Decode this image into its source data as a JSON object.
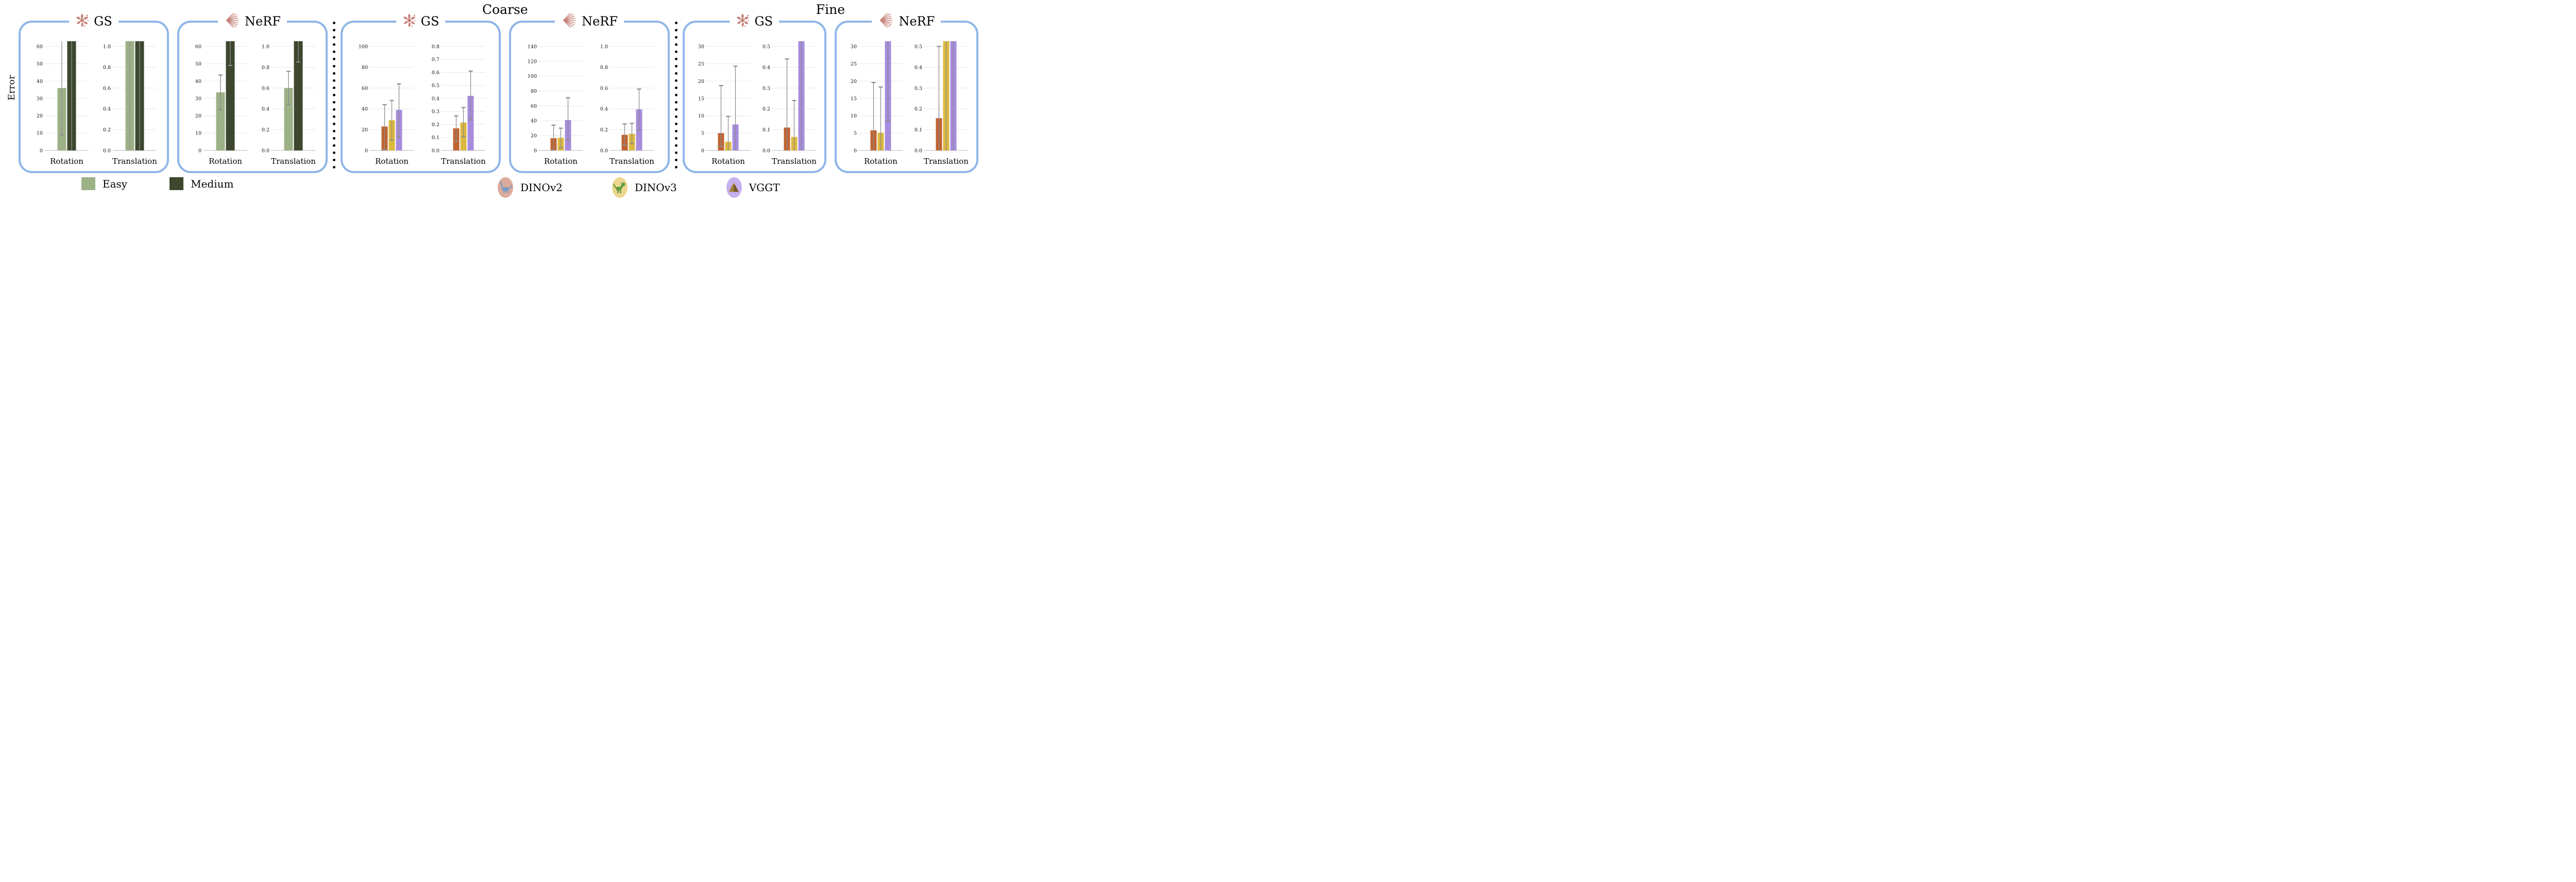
{
  "figure": {
    "y_axis_label": "Error"
  },
  "colors": {
    "easy": "#9db187",
    "medium": "#3d472e",
    "dinov2": "#bf6332",
    "dinov3": "#dcb83f",
    "vggt": "#a78cdd",
    "box_border": "#8fb6e8",
    "error_bar": "#8c8c8c",
    "grid": "#e7e7e7",
    "axis": "#c4c4c4",
    "icon_salmon": "#c7837b"
  },
  "legend": {
    "difficulty": [
      {
        "key": "easy",
        "label": "Easy"
      },
      {
        "key": "medium",
        "label": "Medium"
      }
    ],
    "backbones": [
      {
        "key": "dinov2",
        "label": "DINOv2",
        "icon": "sauropod-icon",
        "bg": "#dcab9c"
      },
      {
        "key": "dinov3",
        "label": "DINOv3",
        "icon": "trex-icon",
        "bg": "#ecd78e"
      },
      {
        "key": "vggt",
        "label": "VGGT",
        "icon": "pyramid-icon",
        "bg": "#c5b0f0"
      }
    ]
  },
  "sections": [
    {
      "id": "overall",
      "title": "",
      "boxes": [
        {
          "id": "overall-gs",
          "label": "GS",
          "icon": "splat-icon",
          "chart_ids": [
            "overall-gs-rotation",
            "overall-gs-translation"
          ]
        },
        {
          "id": "overall-nerf",
          "label": "NeRF",
          "icon": "nerf-rays-icon",
          "chart_ids": [
            "overall-nerf-rotation",
            "overall-nerf-translation"
          ]
        }
      ]
    },
    {
      "id": "coarse",
      "title": "Coarse",
      "boxes": [
        {
          "id": "coarse-gs",
          "label": "GS",
          "icon": "splat-icon",
          "chart_ids": [
            "coarse-gs-rotation",
            "coarse-gs-translation"
          ]
        },
        {
          "id": "coarse-nerf",
          "label": "NeRF",
          "icon": "nerf-rays-icon",
          "chart_ids": [
            "coarse-nerf-rotation",
            "coarse-nerf-translation"
          ]
        }
      ]
    },
    {
      "id": "fine",
      "title": "Fine",
      "boxes": [
        {
          "id": "fine-gs",
          "label": "GS",
          "icon": "splat-icon",
          "chart_ids": [
            "fine-gs-rotation",
            "fine-gs-translation"
          ]
        },
        {
          "id": "fine-nerf",
          "label": "NeRF",
          "icon": "nerf-rays-icon",
          "chart_ids": [
            "fine-nerf-rotation",
            "fine-nerf-translation"
          ]
        }
      ]
    }
  ],
  "chart_data": [
    {
      "id": "overall-gs-rotation",
      "type": "bar",
      "section": "overall",
      "box": "GS",
      "xlabel": "Rotation",
      "ylim": [
        0,
        63
      ],
      "yticks": [
        {
          "v": 0,
          "label": "0"
        },
        {
          "v": 10,
          "label": "10"
        },
        {
          "v": 20,
          "label": "20"
        },
        {
          "v": 30,
          "label": "30"
        },
        {
          "v": 40,
          "label": "40"
        },
        {
          "v": 50,
          "label": "50"
        },
        {
          "v": 60,
          "label": "60"
        }
      ],
      "bars": [
        {
          "series": "easy",
          "value": 36,
          "err": [
            9,
            75
          ],
          "clipped": false
        },
        {
          "series": "medium",
          "value": 70,
          "err": [
            -5,
            90
          ],
          "clipped": true
        }
      ]
    },
    {
      "id": "overall-gs-translation",
      "type": "bar",
      "section": "overall",
      "box": "GS",
      "xlabel": "Translation",
      "ylim": [
        0,
        1.05
      ],
      "yticks": [
        {
          "v": 0,
          "label": "0.0"
        },
        {
          "v": 0.2,
          "label": "0.2"
        },
        {
          "v": 0.4,
          "label": "0.4"
        },
        {
          "v": 0.6,
          "label": "0.6"
        },
        {
          "v": 0.8,
          "label": "0.8"
        },
        {
          "v": 1.0,
          "label": "1.0"
        }
      ],
      "bars": [
        {
          "series": "easy",
          "value": 1.1,
          "err": [
            -0.1,
            1.5
          ],
          "clipped": true
        },
        {
          "series": "medium",
          "value": 1.1,
          "err": [
            -0.1,
            1.5
          ],
          "clipped": true
        }
      ]
    },
    {
      "id": "overall-nerf-rotation",
      "type": "bar",
      "section": "overall",
      "box": "NeRF",
      "xlabel": "Rotation",
      "ylim": [
        0,
        63
      ],
      "yticks": [
        {
          "v": 0,
          "label": "0"
        },
        {
          "v": 10,
          "label": "10"
        },
        {
          "v": 20,
          "label": "20"
        },
        {
          "v": 30,
          "label": "30"
        },
        {
          "v": 40,
          "label": "40"
        },
        {
          "v": 50,
          "label": "50"
        },
        {
          "v": 60,
          "label": "60"
        }
      ],
      "bars": [
        {
          "series": "easy",
          "value": 33.5,
          "err": [
            23.5,
            43.5
          ],
          "clipped": false
        },
        {
          "series": "medium",
          "value": 70,
          "err": [
            49,
            85
          ],
          "clipped": true
        }
      ]
    },
    {
      "id": "overall-nerf-translation",
      "type": "bar",
      "section": "overall",
      "box": "NeRF",
      "xlabel": "Translation",
      "ylim": [
        0,
        1.05
      ],
      "yticks": [
        {
          "v": 0,
          "label": "0.0"
        },
        {
          "v": 0.2,
          "label": "0.2"
        },
        {
          "v": 0.4,
          "label": "0.4"
        },
        {
          "v": 0.6,
          "label": "0.6"
        },
        {
          "v": 0.8,
          "label": "0.8"
        },
        {
          "v": 1.0,
          "label": "1.0"
        }
      ],
      "bars": [
        {
          "series": "easy",
          "value": 0.6,
          "err": [
            0.44,
            0.76
          ],
          "clipped": false
        },
        {
          "series": "medium",
          "value": 1.1,
          "err": [
            0.85,
            1.4
          ],
          "clipped": true
        }
      ]
    },
    {
      "id": "coarse-gs-rotation",
      "type": "bar",
      "section": "coarse",
      "box": "GS",
      "xlabel": "Rotation",
      "ylim": [
        0,
        105
      ],
      "yticks": [
        {
          "v": 0,
          "label": "0"
        },
        {
          "v": 20,
          "label": "20"
        },
        {
          "v": 40,
          "label": "40"
        },
        {
          "v": 60,
          "label": "60"
        },
        {
          "v": 80,
          "label": "80"
        },
        {
          "v": 100,
          "label": "100"
        }
      ],
      "bars": [
        {
          "series": "dinov2",
          "value": 23,
          "err": [
            1,
            44
          ],
          "clipped": false
        },
        {
          "series": "dinov3",
          "value": 29,
          "err": [
            10,
            48
          ],
          "clipped": false
        },
        {
          "series": "vggt",
          "value": 39,
          "err": [
            13,
            64
          ],
          "clipped": false
        }
      ]
    },
    {
      "id": "coarse-gs-translation",
      "type": "bar",
      "section": "coarse",
      "box": "GS",
      "xlabel": "Translation",
      "ylim": [
        0,
        0.84
      ],
      "yticks": [
        {
          "v": 0,
          "label": "0.0"
        },
        {
          "v": 0.1,
          "label": "0.1"
        },
        {
          "v": 0.2,
          "label": "0.2"
        },
        {
          "v": 0.3,
          "label": "0.3"
        },
        {
          "v": 0.4,
          "label": "0.4"
        },
        {
          "v": 0.5,
          "label": "0.5"
        },
        {
          "v": 0.6,
          "label": "0.6"
        },
        {
          "v": 0.7,
          "label": "0.7"
        },
        {
          "v": 0.8,
          "label": "0.8"
        }
      ],
      "bars": [
        {
          "series": "dinov2",
          "value": 0.17,
          "err": [
            0.07,
            0.265
          ],
          "clipped": false
        },
        {
          "series": "dinov3",
          "value": 0.215,
          "err": [
            0.105,
            0.33
          ],
          "clipped": false
        },
        {
          "series": "vggt",
          "value": 0.42,
          "err": [
            0.235,
            0.61
          ],
          "clipped": false
        }
      ]
    },
    {
      "id": "coarse-nerf-rotation",
      "type": "bar",
      "section": "coarse",
      "box": "NeRF",
      "xlabel": "Rotation",
      "ylim": [
        0,
        147
      ],
      "yticks": [
        {
          "v": 0,
          "label": "0"
        },
        {
          "v": 20,
          "label": "20"
        },
        {
          "v": 40,
          "label": "40"
        },
        {
          "v": 60,
          "label": "60"
        },
        {
          "v": 80,
          "label": "80"
        },
        {
          "v": 100,
          "label": "100"
        },
        {
          "v": 120,
          "label": "120"
        },
        {
          "v": 140,
          "label": "140"
        }
      ],
      "bars": [
        {
          "series": "dinov2",
          "value": 16.5,
          "err": [
            0.5,
            34
          ],
          "clipped": false
        },
        {
          "series": "dinov3",
          "value": 17,
          "err": [
            3.5,
            30
          ],
          "clipped": false
        },
        {
          "series": "vggt",
          "value": 41,
          "err": [
            14,
            71
          ],
          "clipped": false
        }
      ]
    },
    {
      "id": "coarse-nerf-translation",
      "type": "bar",
      "section": "coarse",
      "box": "NeRF",
      "xlabel": "Translation",
      "ylim": [
        0,
        1.05
      ],
      "yticks": [
        {
          "v": 0,
          "label": "0.0"
        },
        {
          "v": 0.2,
          "label": "0.2"
        },
        {
          "v": 0.4,
          "label": "0.4"
        },
        {
          "v": 0.6,
          "label": "0.6"
        },
        {
          "v": 0.8,
          "label": "0.8"
        },
        {
          "v": 1.0,
          "label": "1.0"
        }
      ],
      "bars": [
        {
          "series": "dinov2",
          "value": 0.15,
          "err": [
            0.05,
            0.255
          ],
          "clipped": false
        },
        {
          "series": "dinov3",
          "value": 0.16,
          "err": [
            0.065,
            0.26
          ],
          "clipped": false
        },
        {
          "series": "vggt",
          "value": 0.395,
          "err": [
            0.195,
            0.59
          ],
          "clipped": false
        }
      ]
    },
    {
      "id": "fine-gs-rotation",
      "type": "bar",
      "section": "fine",
      "box": "GS",
      "xlabel": "Rotation",
      "ylim": [
        0,
        31.5
      ],
      "yticks": [
        {
          "v": 0,
          "label": "0"
        },
        {
          "v": 5,
          "label": "5"
        },
        {
          "v": 10,
          "label": "10"
        },
        {
          "v": 15,
          "label": "15"
        },
        {
          "v": 20,
          "label": "20"
        },
        {
          "v": 25,
          "label": "25"
        },
        {
          "v": 30,
          "label": "30"
        }
      ],
      "bars": [
        {
          "series": "dinov2",
          "value": 5.0,
          "err": [
            1.2,
            18.7
          ],
          "clipped": false
        },
        {
          "series": "dinov3",
          "value": 2.5,
          "err": [
            -1,
            9.8
          ],
          "clipped": false
        },
        {
          "series": "vggt",
          "value": 7.5,
          "err": [
            -1,
            24.3
          ],
          "clipped": false
        }
      ]
    },
    {
      "id": "fine-gs-translation",
      "type": "bar",
      "section": "fine",
      "box": "GS",
      "xlabel": "Translation",
      "ylim": [
        0,
        0.525
      ],
      "yticks": [
        {
          "v": 0,
          "label": "0.0"
        },
        {
          "v": 0.1,
          "label": "0.1"
        },
        {
          "v": 0.2,
          "label": "0.2"
        },
        {
          "v": 0.3,
          "label": "0.3"
        },
        {
          "v": 0.4,
          "label": "0.4"
        },
        {
          "v": 0.5,
          "label": "0.5"
        }
      ],
      "bars": [
        {
          "series": "dinov2",
          "value": 0.11,
          "err": [
            -0.05,
            0.44
          ],
          "clipped": false
        },
        {
          "series": "dinov3",
          "value": 0.065,
          "err": [
            -0.05,
            0.24
          ],
          "clipped": false
        },
        {
          "series": "vggt",
          "value": 0.55,
          "err": [
            -0.05,
            0.7
          ],
          "clipped": true
        }
      ]
    },
    {
      "id": "fine-nerf-rotation",
      "type": "bar",
      "section": "fine",
      "box": "NeRF",
      "xlabel": "Rotation",
      "ylim": [
        0,
        31.5
      ],
      "yticks": [
        {
          "v": 0,
          "label": "0"
        },
        {
          "v": 5,
          "label": "5"
        },
        {
          "v": 10,
          "label": "10"
        },
        {
          "v": 15,
          "label": "15"
        },
        {
          "v": 20,
          "label": "20"
        },
        {
          "v": 25,
          "label": "25"
        },
        {
          "v": 30,
          "label": "30"
        }
      ],
      "bars": [
        {
          "series": "dinov2",
          "value": 5.8,
          "err": [
            -1,
            19.6
          ],
          "clipped": false
        },
        {
          "series": "dinov3",
          "value": 5.1,
          "err": [
            -1,
            18.3
          ],
          "clipped": false
        },
        {
          "series": "vggt",
          "value": 33,
          "err": [
            8.6,
            40
          ],
          "clipped": true
        }
      ]
    },
    {
      "id": "fine-nerf-translation",
      "type": "bar",
      "section": "fine",
      "box": "NeRF",
      "xlabel": "Translation",
      "ylim": [
        0,
        0.525
      ],
      "yticks": [
        {
          "v": 0,
          "label": "0.0"
        },
        {
          "v": 0.1,
          "label": "0.1"
        },
        {
          "v": 0.2,
          "label": "0.2"
        },
        {
          "v": 0.3,
          "label": "0.3"
        },
        {
          "v": 0.4,
          "label": "0.4"
        },
        {
          "v": 0.5,
          "label": "0.5"
        }
      ],
      "bars": [
        {
          "series": "dinov2",
          "value": 0.155,
          "err": [
            -0.05,
            0.5
          ],
          "clipped": false
        },
        {
          "series": "dinov3",
          "value": 0.55,
          "err": [
            -0.05,
            0.7
          ],
          "clipped": true
        },
        {
          "series": "vggt",
          "value": 0.55,
          "err": [
            -0.05,
            0.7
          ],
          "clipped": true
        }
      ]
    }
  ]
}
